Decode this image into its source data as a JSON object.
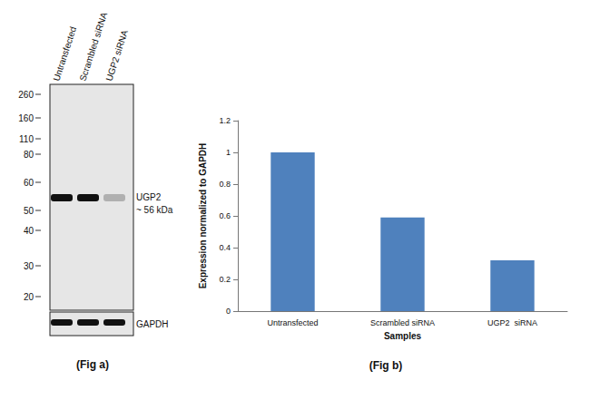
{
  "blot": {
    "lanes": [
      "Untransfected",
      "Scrambled siRNA",
      "UGP2 siRNA"
    ],
    "band_intensity": [
      1,
      1,
      0.25
    ],
    "markers": [
      260,
      160,
      110,
      80,
      60,
      50,
      40,
      30,
      20
    ],
    "band_label": [
      "UGP2",
      "~ 56 kDa"
    ],
    "loading_control": "GAPDH",
    "caption": "(Fig a)"
  },
  "chart_data": {
    "type": "bar",
    "title": "(Fig b)",
    "categories": [
      "Untransfected",
      "Scrambled siRNA",
      "UGP2  siRNA"
    ],
    "values": [
      1.0,
      0.59,
      0.32
    ],
    "color": "#4f81bd",
    "xlabel": "Samples",
    "ylabel": "Expression normalized to GAPDH",
    "ylim": [
      0,
      1.2
    ],
    "yticks": [
      0,
      0.2,
      0.4,
      0.6,
      0.8,
      1,
      1.2
    ],
    "grid": false
  }
}
